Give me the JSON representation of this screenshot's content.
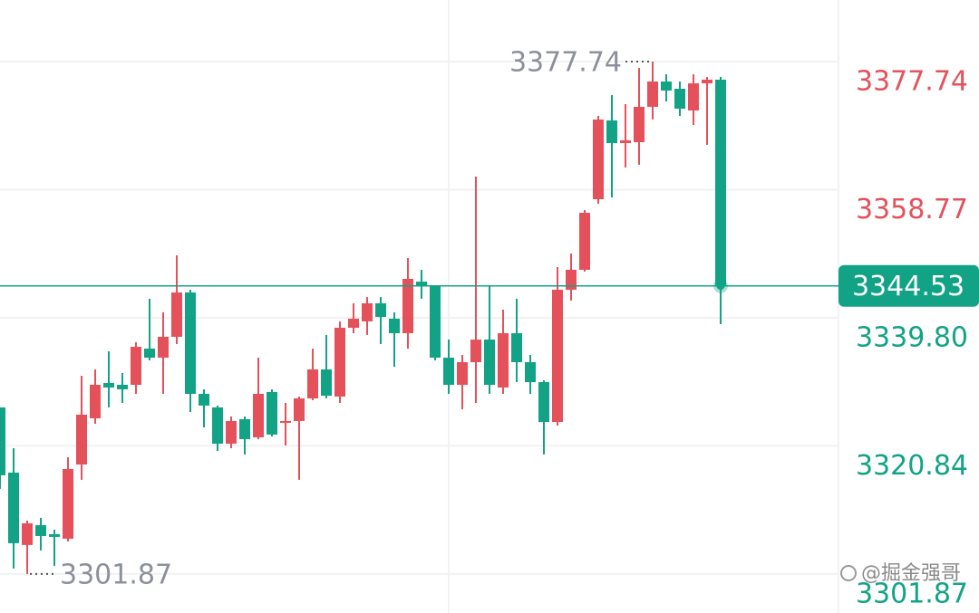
{
  "chart_data": {
    "type": "candlestick",
    "open": [
      3326.53,
      3316.88,
      3306.16,
      3309.1,
      3307.76,
      3307.09,
      3318.08,
      3324.92,
      3330.15,
      3329.88,
      3329.88,
      3335.24,
      3333.9,
      3336.99,
      3343.55,
      3328.54,
      3326.53,
      3321.16,
      3324.79,
      3322.1,
      3328.81,
      3324.25,
      3324.52,
      3327.87,
      3332.16,
      3328.14,
      3338.33,
      3339.27,
      3341.95,
      3339.67,
      3337.52,
      3345.16,
      3344.49,
      3333.9,
      3329.88,
      3333.23,
      3336.58,
      3329.48,
      3337.52,
      3333.23,
      3330.28,
      3324.38,
      3343.96,
      3346.91,
      3357.36,
      3369.03,
      3365.67,
      3365.81,
      3371.04,
      3374.79,
      3373.72,
      3370.5,
      3374.52,
      3375.06
    ],
    "high": [
      3326.53,
      3320.49,
      3309.77,
      3310.18,
      3308.43,
      3319.16,
      3331.22,
      3332.16,
      3334.84,
      3331.62,
      3336.18,
      3342.62,
      3340.61,
      3349.05,
      3343.96,
      3329.21,
      3326.8,
      3325.19,
      3325.19,
      3333.9,
      3329.21,
      3327.2,
      3328.14,
      3335.24,
      3337.26,
      3339.27,
      3341.95,
      3342.88,
      3342.88,
      3340.61,
      3348.65,
      3346.91,
      3344.63,
      3336.58,
      3334.3,
      3360.71,
      3344.49,
      3341.01,
      3342.62,
      3334.3,
      3330.55,
      3347.31,
      3349.32,
      3355.75,
      3369.7,
      3372.78,
      3371.44,
      3376.8,
      3377.74,
      3375.86,
      3374.79,
      3375.86,
      3375.46,
      3375.46
    ],
    "low": [
      3314.47,
      3302.67,
      3301.87,
      3305.35,
      3303.07,
      3306.69,
      3315.81,
      3324.11,
      3326.53,
      3327.2,
      3328.54,
      3333.5,
      3328.54,
      3335.91,
      3325.86,
      3323.58,
      3320.09,
      3320.49,
      3319.56,
      3321.83,
      3322.24,
      3320.9,
      3315.81,
      3327.6,
      3327.87,
      3327.2,
      3337.52,
      3337.26,
      3335.91,
      3332.56,
      3335.24,
      3342.62,
      3333.5,
      3328.54,
      3326.26,
      3327.2,
      3328.54,
      3328.54,
      3330.28,
      3328.54,
      3319.56,
      3323.85,
      3342.35,
      3346.64,
      3356.69,
      3357.63,
      3362.06,
      3362.46,
      3369.16,
      3371.84,
      3369.7,
      3368.36,
      3365.41,
      3338.86
    ],
    "close": [
      3316.48,
      3306.42,
      3309.37,
      3307.49,
      3307.36,
      3317.41,
      3325.46,
      3329.88,
      3329.48,
      3329.21,
      3335.51,
      3333.9,
      3336.99,
      3343.55,
      3328.54,
      3326.8,
      3321.16,
      3324.52,
      3321.83,
      3328.54,
      3322.51,
      3324.52,
      3327.87,
      3332.16,
      3328.27,
      3338.33,
      3339.67,
      3341.95,
      3339.93,
      3337.52,
      3345.57,
      3344.49,
      3333.9,
      3329.88,
      3333.23,
      3336.58,
      3329.88,
      3337.52,
      3333.23,
      3330.28,
      3324.38,
      3343.96,
      3346.91,
      3355.35,
      3369.16,
      3365.67,
      3366.08,
      3371.04,
      3374.79,
      3373.45,
      3370.77,
      3374.52,
      3375.06,
      3344.53
    ],
    "up_color": "#e5515b",
    "down_color": "#12a386",
    "marker_color": "#8b909b",
    "ylim": [
      3296.09,
      3386.86
    ],
    "yticks": [
      3377.74,
      3358.77,
      {
        "value": 3339.8,
        "label": "3339.80"
      },
      3320.84,
      3301.87
    ],
    "grid": true,
    "high_marker": 3377.74,
    "low_marker": 3301.87,
    "last_price": 3344.53,
    "watermark": "@掘金强哥"
  }
}
